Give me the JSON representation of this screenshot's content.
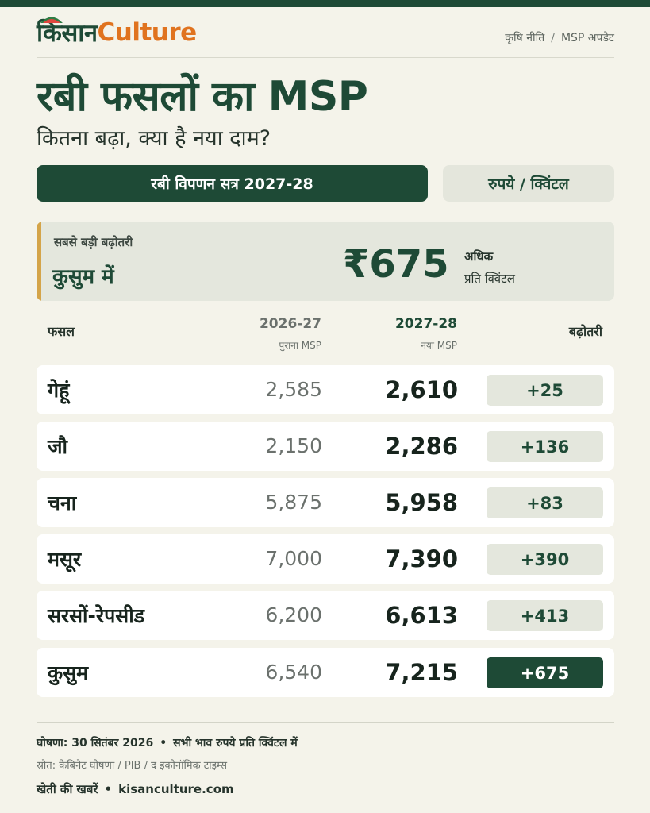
{
  "brand": {
    "name_hi": "किसान",
    "name_en": "Culture",
    "logo_icon": "watermelon-icon"
  },
  "breadcrumb": [
    "कृषि नीति",
    "MSP अपडेट"
  ],
  "title": "रबी फसलों का MSP",
  "subtitle": "कितना बढ़ा, क्या है नया दाम?",
  "season_label": "रबी विपणन सत्र 2027-28",
  "unit_label": "रुपये / क्विंटल",
  "highlight": {
    "label": "सबसे बड़ी बढ़ोतरी",
    "crop": "कुसुम में",
    "amount": "₹675",
    "suffix_1": "अधिक",
    "suffix_2": "प्रति क्विंटल"
  },
  "table": {
    "headers": {
      "crop": "फसल",
      "old_year": "2026-27",
      "old_sub": "पुराना MSP",
      "new_year": "2027-28",
      "new_sub": "नया MSP",
      "increase": "बढ़ोतरी"
    },
    "rows": [
      {
        "crop": "गेहूं",
        "old": "2,585",
        "new": "2,610",
        "increase": "+25"
      },
      {
        "crop": "जौ",
        "old": "2,150",
        "new": "2,286",
        "increase": "+136"
      },
      {
        "crop": "चना",
        "old": "5,875",
        "new": "5,958",
        "increase": "+83"
      },
      {
        "crop": "मसूर",
        "old": "7,000",
        "new": "7,390",
        "increase": "+390"
      },
      {
        "crop": "सरसों-रेपसीड",
        "old": "6,200",
        "new": "6,613",
        "increase": "+413"
      },
      {
        "crop": "कुसुम",
        "old": "6,540",
        "new": "7,215",
        "increase": "+675"
      }
    ]
  },
  "footer": {
    "announcement": "घोषणा: 30 सितंबर 2026",
    "note": "सभी भाव रुपये प्रति क्विंटल में",
    "source": "स्रोत: कैबिनेट घोषणा / PIB / द इकोनॉमिक टाइम्स",
    "tagline": "खेती की खबरें",
    "website": "kisanculture.com"
  },
  "colors": {
    "primary": "#1e4a36",
    "accent": "#e0731f",
    "highlight_bar": "#d4a449",
    "background": "#f4f3ea"
  }
}
